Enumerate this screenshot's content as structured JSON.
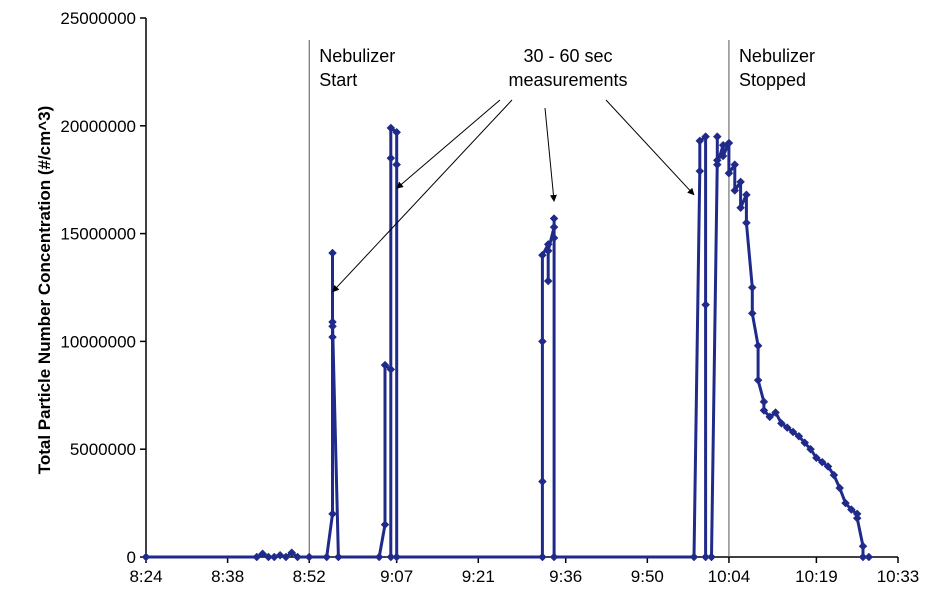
{
  "chart_data": {
    "type": "scatter",
    "title": "",
    "xlabel": "",
    "ylabel": "Total Particle Number Concentration (#/cm^3)",
    "x_ticks": [
      "8:24",
      "8:38",
      "8:52",
      "9:07",
      "9:21",
      "9:36",
      "9:50",
      "10:04",
      "10:19",
      "10:33"
    ],
    "y_ticks": [
      "0",
      "5000000",
      "10000000",
      "15000000",
      "20000000",
      "25000000"
    ],
    "xlim": [
      "8:24",
      "10:33"
    ],
    "ylim": [
      0,
      25000000
    ],
    "grid": false,
    "legend": "none",
    "series": [
      {
        "color": "#1f2a8a",
        "marker": "diamond",
        "points": [
          [
            "8:24",
            0
          ],
          [
            "8:43",
            0
          ],
          [
            "8:44",
            150000
          ],
          [
            "8:45",
            0
          ],
          [
            "8:46",
            0
          ],
          [
            "8:47",
            80000
          ],
          [
            "8:48",
            0
          ],
          [
            "8:49",
            200000
          ],
          [
            "8:50",
            0
          ],
          [
            "8:52",
            0
          ],
          [
            "8:55",
            0
          ],
          [
            "8:56",
            2000000
          ],
          [
            "8:56",
            10200000
          ],
          [
            "8:56",
            10700000
          ],
          [
            "8:56",
            14100000
          ],
          [
            "8:56",
            10900000
          ],
          [
            "8:57",
            0
          ],
          [
            "9:04",
            0
          ],
          [
            "9:05",
            1500000
          ],
          [
            "9:05",
            8900000
          ],
          [
            "9:06",
            8700000
          ],
          [
            "9:06",
            0
          ],
          [
            "9:06",
            18500000
          ],
          [
            "9:06",
            19900000
          ],
          [
            "9:07",
            19700000
          ],
          [
            "9:07",
            18200000
          ],
          [
            "9:07",
            0
          ],
          [
            "9:32",
            0
          ],
          [
            "9:32",
            3500000
          ],
          [
            "9:32",
            10000000
          ],
          [
            "9:32",
            14000000
          ],
          [
            "9:33",
            14500000
          ],
          [
            "9:33",
            12800000
          ],
          [
            "9:33",
            14200000
          ],
          [
            "9:34",
            15300000
          ],
          [
            "9:34",
            14800000
          ],
          [
            "9:34",
            15700000
          ],
          [
            "9:34",
            0
          ],
          [
            "9:58",
            0
          ],
          [
            "9:59",
            17900000
          ],
          [
            "9:59",
            19300000
          ],
          [
            "10:00",
            19500000
          ],
          [
            "10:00",
            11700000
          ],
          [
            "10:00",
            0
          ],
          [
            "10:01",
            0
          ],
          [
            "10:02",
            18400000
          ],
          [
            "10:02",
            19500000
          ],
          [
            "10:02",
            18200000
          ],
          [
            "10:03",
            19100000
          ],
          [
            "10:03",
            18600000
          ],
          [
            "10:04",
            19200000
          ],
          [
            "10:04",
            17800000
          ],
          [
            "10:05",
            18200000
          ],
          [
            "10:05",
            17000000
          ],
          [
            "10:06",
            17400000
          ],
          [
            "10:06",
            16200000
          ],
          [
            "10:07",
            16800000
          ],
          [
            "10:07",
            15500000
          ],
          [
            "10:08",
            12500000
          ],
          [
            "10:08",
            11300000
          ],
          [
            "10:09",
            9800000
          ],
          [
            "10:09",
            8200000
          ],
          [
            "10:10",
            7200000
          ],
          [
            "10:10",
            6800000
          ],
          [
            "10:11",
            6500000
          ],
          [
            "10:12",
            6700000
          ],
          [
            "10:13",
            6200000
          ],
          [
            "10:14",
            6000000
          ],
          [
            "10:15",
            5800000
          ],
          [
            "10:16",
            5600000
          ],
          [
            "10:17",
            5300000
          ],
          [
            "10:18",
            5000000
          ],
          [
            "10:19",
            4600000
          ],
          [
            "10:20",
            4400000
          ],
          [
            "10:21",
            4200000
          ],
          [
            "10:22",
            3800000
          ],
          [
            "10:23",
            3200000
          ],
          [
            "10:24",
            2500000
          ],
          [
            "10:25",
            2200000
          ],
          [
            "10:26",
            2000000
          ],
          [
            "10:26",
            1800000
          ],
          [
            "10:27",
            500000
          ],
          [
            "10:27",
            0
          ],
          [
            "10:28",
            0
          ]
        ]
      }
    ],
    "vertical_lines": [
      {
        "x": "8:52",
        "label_lines": [
          "Nebulizer",
          "Start"
        ]
      },
      {
        "x": "10:04",
        "label_lines": [
          "Nebulizer",
          "Stopped"
        ]
      }
    ],
    "annotation": {
      "label_lines": [
        "30 - 60 sec",
        "measurements"
      ],
      "arrow_targets": [
        [
          "8:56",
          12300000
        ],
        [
          "9:07",
          17100000
        ],
        [
          "9:34",
          16500000
        ],
        [
          "9:58",
          16800000
        ]
      ]
    }
  }
}
